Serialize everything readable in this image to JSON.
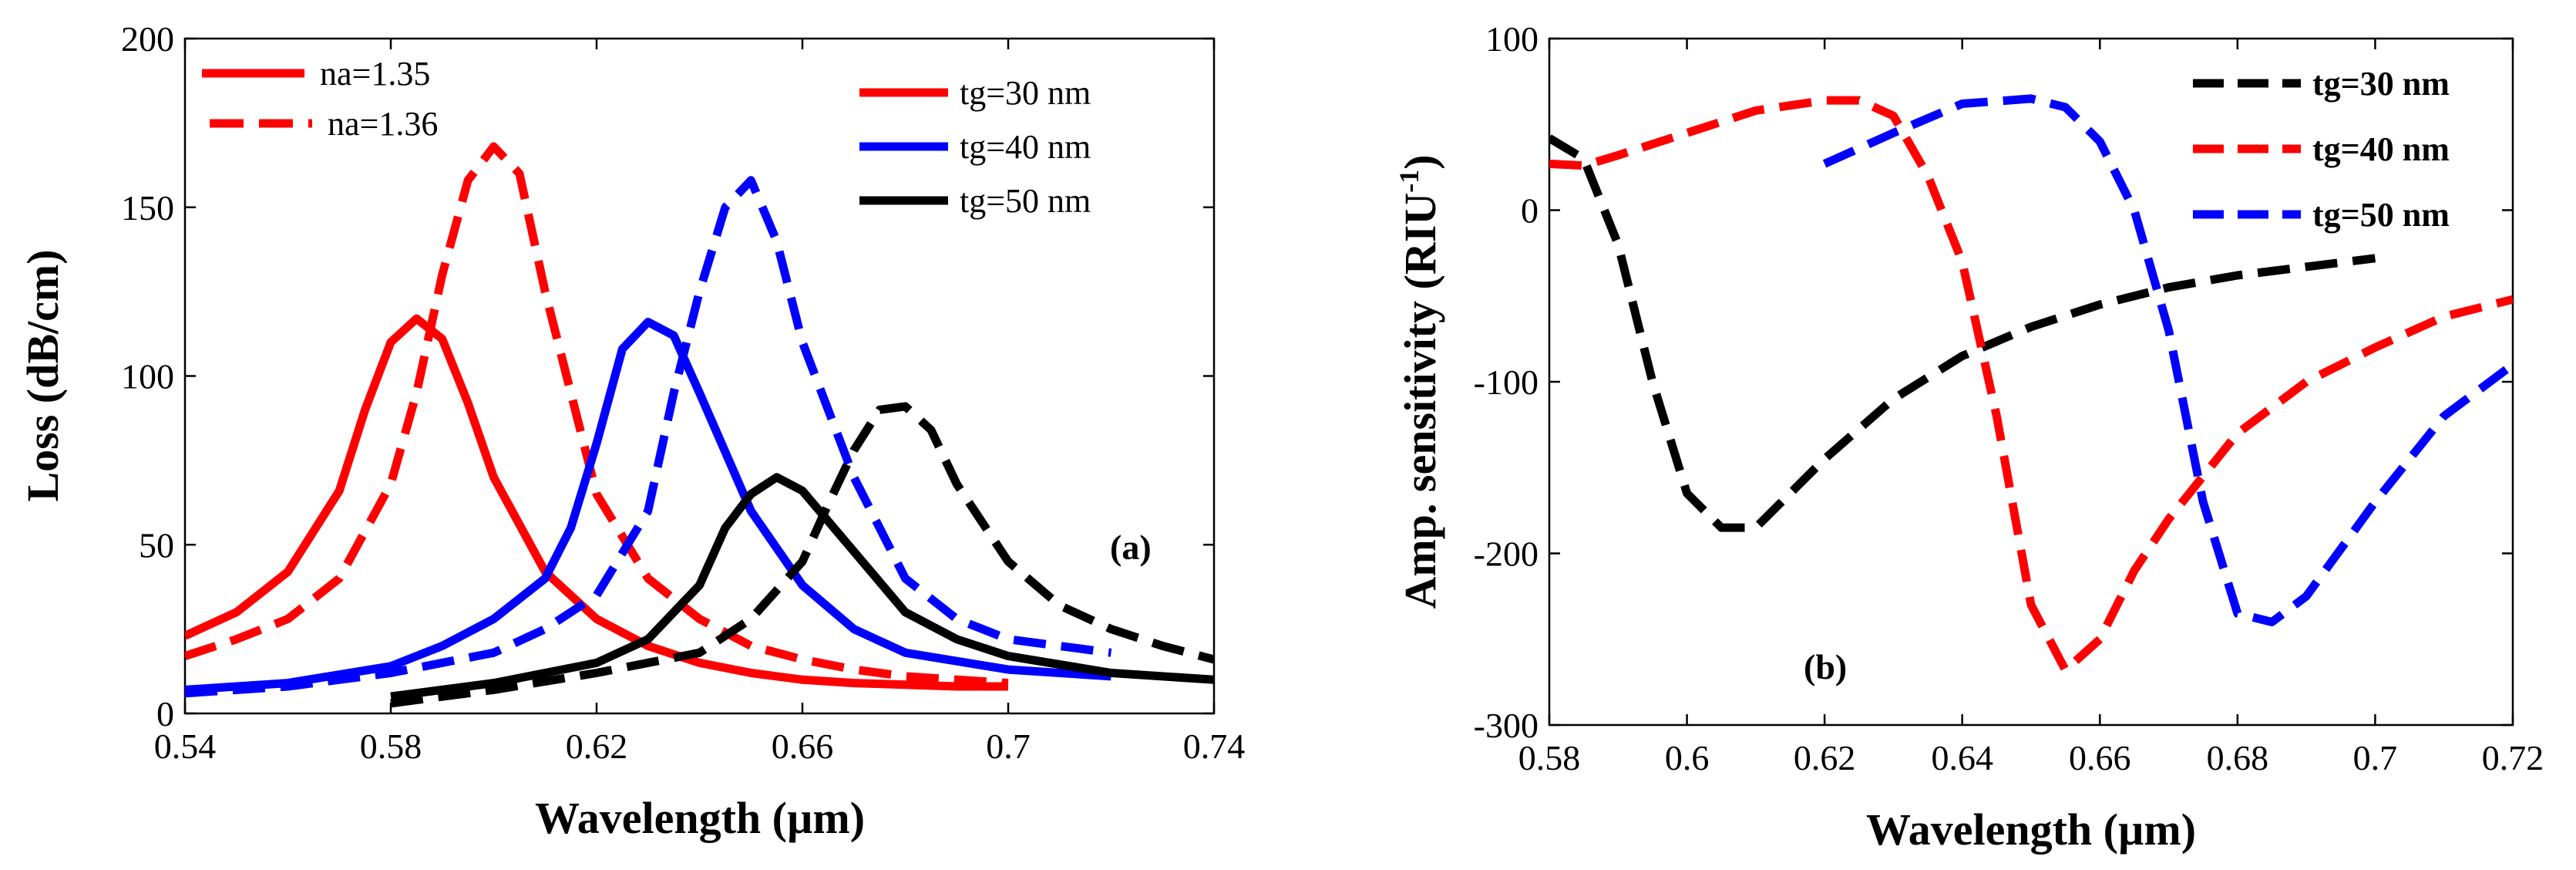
{
  "chart_data": [
    {
      "type": "line",
      "panel_label": "(a)",
      "xlabel": "Wavelength (µm)",
      "ylabel": "Loss (dB/cm)",
      "xlim": [
        0.54,
        0.74
      ],
      "ylim": [
        0,
        200
      ],
      "xticks": [
        0.54,
        0.58,
        0.62,
        0.66,
        0.7,
        0.74
      ],
      "xtick_labels": [
        "0.54",
        "0.58",
        "0.62",
        "0.66",
        "0.7",
        "0.74"
      ],
      "yticks": [
        0,
        50,
        100,
        150,
        200
      ],
      "ytick_labels": [
        "0",
        "50",
        "100",
        "150",
        "200"
      ],
      "legend_style": [
        {
          "label": "na=1.35",
          "color": "#ff0000",
          "style": "solid"
        },
        {
          "label": "na=1.36",
          "color": "#ff0000",
          "style": "dashed"
        }
      ],
      "legend_thickness": [
        {
          "label": "tg=30 nm",
          "color": "#ff0000"
        },
        {
          "label": "tg=40 nm",
          "color": "#0000ff"
        },
        {
          "label": "tg=50 nm",
          "color": "#000000"
        }
      ],
      "series": [
        {
          "name": "tg=30 nm, na=1.35",
          "color": "#ff0000",
          "style": "solid",
          "x": [
            0.54,
            0.55,
            0.56,
            0.57,
            0.575,
            0.58,
            0.585,
            0.59,
            0.595,
            0.6,
            0.61,
            0.62,
            0.63,
            0.64,
            0.65,
            0.66,
            0.67,
            0.68,
            0.69,
            0.7
          ],
          "y": [
            23,
            30,
            42,
            66,
            90,
            110,
            117,
            111,
            92,
            70,
            42,
            28,
            20,
            15,
            12,
            10,
            9,
            8.5,
            8,
            8
          ]
        },
        {
          "name": "tg=30 nm, na=1.36",
          "color": "#ff0000",
          "style": "dashed",
          "x": [
            0.54,
            0.55,
            0.56,
            0.57,
            0.58,
            0.585,
            0.59,
            0.595,
            0.6,
            0.605,
            0.61,
            0.62,
            0.63,
            0.64,
            0.65,
            0.66,
            0.67,
            0.68,
            0.69,
            0.7
          ],
          "y": [
            17,
            22,
            28,
            40,
            68,
            95,
            130,
            158,
            168,
            160,
            125,
            65,
            40,
            28,
            20,
            16,
            13,
            11,
            10,
            9
          ]
        },
        {
          "name": "tg=40 nm, na=1.35",
          "color": "#0000ff",
          "style": "solid",
          "x": [
            0.54,
            0.56,
            0.58,
            0.59,
            0.6,
            0.61,
            0.615,
            0.62,
            0.625,
            0.63,
            0.635,
            0.64,
            0.65,
            0.66,
            0.67,
            0.68,
            0.7,
            0.72
          ],
          "y": [
            7,
            9,
            14,
            20,
            28,
            40,
            55,
            80,
            108,
            116,
            112,
            95,
            60,
            38,
            25,
            18,
            13,
            11
          ]
        },
        {
          "name": "tg=40 nm, na=1.36",
          "color": "#0000ff",
          "style": "dashed",
          "x": [
            0.54,
            0.56,
            0.58,
            0.6,
            0.61,
            0.62,
            0.63,
            0.635,
            0.64,
            0.645,
            0.65,
            0.655,
            0.66,
            0.67,
            0.68,
            0.69,
            0.7,
            0.72
          ],
          "y": [
            6,
            8,
            12,
            18,
            25,
            35,
            60,
            95,
            125,
            150,
            158,
            140,
            110,
            70,
            40,
            28,
            22,
            18
          ]
        },
        {
          "name": "tg=50 nm, na=1.35",
          "color": "#000000",
          "style": "solid",
          "x": [
            0.58,
            0.6,
            0.62,
            0.63,
            0.64,
            0.645,
            0.65,
            0.655,
            0.66,
            0.67,
            0.68,
            0.69,
            0.7,
            0.72,
            0.74
          ],
          "y": [
            5,
            9,
            15,
            22,
            38,
            55,
            65,
            70,
            66,
            48,
            30,
            22,
            17,
            12,
            10
          ]
        },
        {
          "name": "tg=50 nm, na=1.36",
          "color": "#000000",
          "style": "dashed",
          "x": [
            0.58,
            0.6,
            0.62,
            0.64,
            0.65,
            0.66,
            0.665,
            0.67,
            0.675,
            0.68,
            0.685,
            0.69,
            0.7,
            0.71,
            0.72,
            0.73,
            0.74
          ],
          "y": [
            3,
            7,
            12,
            18,
            28,
            45,
            62,
            78,
            90,
            91,
            84,
            68,
            45,
            32,
            25,
            20,
            16
          ]
        }
      ]
    },
    {
      "type": "line",
      "panel_label": "(b)",
      "xlabel": "Wavelength (µm)",
      "ylabel": "Amp. sensitivity (RIU",
      "ylabel_sup": "-1",
      "ylabel_close": ")",
      "xlim": [
        0.58,
        0.72
      ],
      "ylim": [
        -300,
        100
      ],
      "xticks": [
        0.58,
        0.6,
        0.62,
        0.64,
        0.66,
        0.68,
        0.7,
        0.72
      ],
      "xtick_labels": [
        "0.58",
        "0.6",
        "0.62",
        "0.64",
        "0.66",
        "0.68",
        "0.7",
        "0.72"
      ],
      "yticks": [
        -300,
        -200,
        -100,
        0,
        100
      ],
      "ytick_labels": [
        "-300",
        "-200",
        "-100",
        "0",
        "100"
      ],
      "legend": [
        {
          "label": "tg=30 nm",
          "color": "#000000"
        },
        {
          "label": "tg=40 nm",
          "color": "#ff0000"
        },
        {
          "label": "tg=50 nm",
          "color": "#0000ff"
        }
      ],
      "series": [
        {
          "name": "tg=30 nm",
          "color": "#000000",
          "style": "dashed",
          "x": [
            0.58,
            0.585,
            0.59,
            0.595,
            0.6,
            0.605,
            0.61,
            0.615,
            0.62,
            0.63,
            0.64,
            0.65,
            0.66,
            0.67,
            0.68,
            0.69,
            0.7
          ],
          "y": [
            42,
            30,
            -20,
            -100,
            -165,
            -185,
            -185,
            -165,
            -145,
            -110,
            -85,
            -68,
            -55,
            -45,
            -38,
            -33,
            -28
          ]
        },
        {
          "name": "tg=40 nm",
          "color": "#ff0000",
          "style": "dashed",
          "x": [
            0.58,
            0.585,
            0.59,
            0.6,
            0.61,
            0.62,
            0.625,
            0.63,
            0.635,
            0.64,
            0.645,
            0.65,
            0.655,
            0.66,
            0.665,
            0.67,
            0.68,
            0.69,
            0.7,
            0.71,
            0.72
          ],
          "y": [
            27,
            26,
            32,
            45,
            58,
            64,
            64,
            55,
            20,
            -30,
            -120,
            -230,
            -268,
            -250,
            -210,
            -180,
            -130,
            -100,
            -80,
            -62,
            -52
          ]
        },
        {
          "name": "tg=50 nm",
          "color": "#0000ff",
          "style": "dashed",
          "x": [
            0.62,
            0.63,
            0.64,
            0.65,
            0.655,
            0.66,
            0.665,
            0.67,
            0.675,
            0.68,
            0.685,
            0.69,
            0.7,
            0.71,
            0.72
          ],
          "y": [
            27,
            45,
            62,
            65,
            60,
            40,
            0,
            -70,
            -170,
            -235,
            -240,
            -225,
            -170,
            -120,
            -90
          ]
        }
      ]
    }
  ]
}
